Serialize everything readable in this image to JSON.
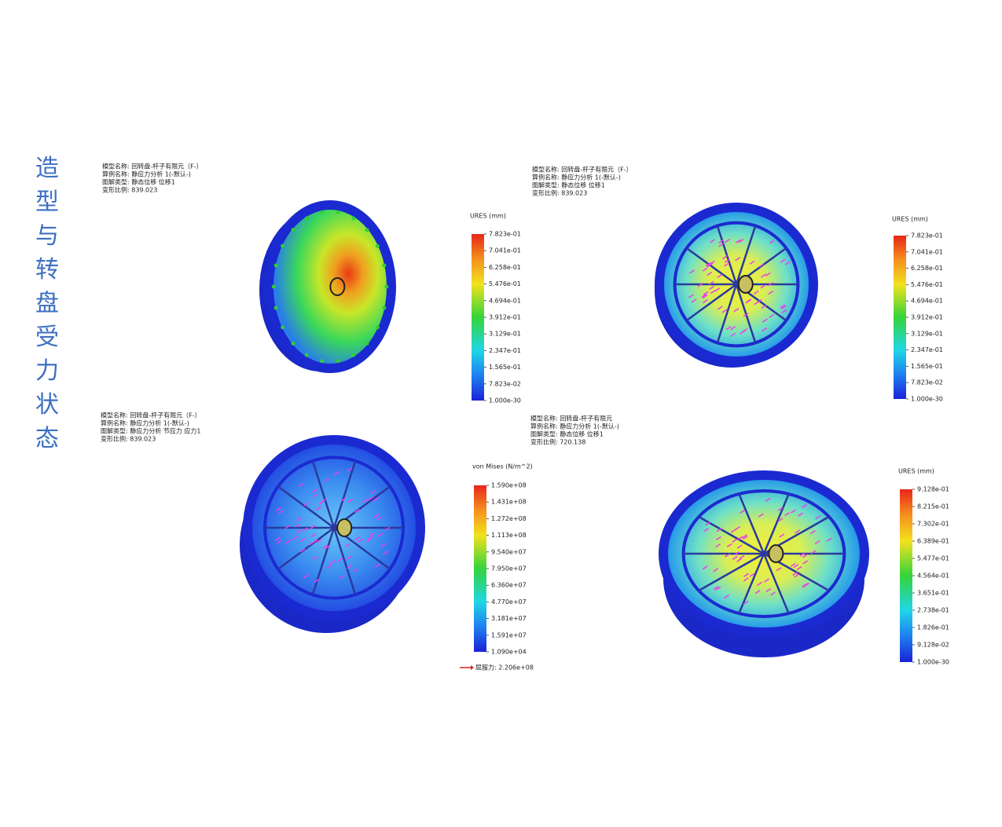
{
  "title": "造型与转盘受力状态",
  "panels": [
    {
      "info": [
        "模型名称: 回转盘-杆子有限元（F-）",
        "算例名称: 静应力分析 1(-默认-)",
        "图解类型: 静态位移 位移1",
        "变形比例: 839.023"
      ],
      "legend_title": "URES (mm)",
      "legend_ticks": [
        "7.823e-01",
        "7.041e-01",
        "6.258e-01",
        "5.476e-01",
        "4.694e-01",
        "3.912e-01",
        "3.129e-01",
        "2.347e-01",
        "1.565e-01",
        "7.823e-02",
        "1.000e-30"
      ]
    },
    {
      "info": [
        "模型名称: 回转盘-杆子有限元（F-）",
        "算例名称: 静应力分析 1(-默认-)",
        "图解类型: 静态位移 位移1",
        "变形比例: 839.023"
      ],
      "legend_title": "URES (mm)",
      "legend_ticks": [
        "7.823e-01",
        "7.041e-01",
        "6.258e-01",
        "5.476e-01",
        "4.694e-01",
        "3.912e-01",
        "3.129e-01",
        "2.347e-01",
        "1.565e-01",
        "7.823e-02",
        "1.000e-30"
      ]
    },
    {
      "info": [
        "模型名称: 回转盘-杆子有限元（F-）",
        "算例名称: 静应力分析 1(-默认-)",
        "图解类型: 静应力分析 节应力 应力1",
        "变形比例: 839.023"
      ],
      "legend_title": "von Mises (N/m^2)",
      "legend_ticks": [
        "1.590e+08",
        "1.431e+08",
        "1.272e+08",
        "1.113e+08",
        "9.540e+07",
        "7.950e+07",
        "6.360e+07",
        "4.770e+07",
        "3.181e+07",
        "1.591e+07",
        "1.090e+04"
      ],
      "yield": "屈服力: 2.206e+08"
    },
    {
      "info": [
        "模型名称: 回转盘-杆子有限元",
        "算例名称: 静应力分析 1(-默认-)",
        "图解类型: 静态位移 位移1",
        "变形比例: 720.138"
      ],
      "legend_title": "URES (mm)",
      "legend_ticks": [
        "9.128e-01",
        "8.215e-01",
        "7.302e-01",
        "6.389e-01",
        "5.477e-01",
        "4.564e-01",
        "3.651e-01",
        "2.738e-01",
        "1.826e-01",
        "9.128e-02",
        "1.000e-30"
      ]
    }
  ]
}
